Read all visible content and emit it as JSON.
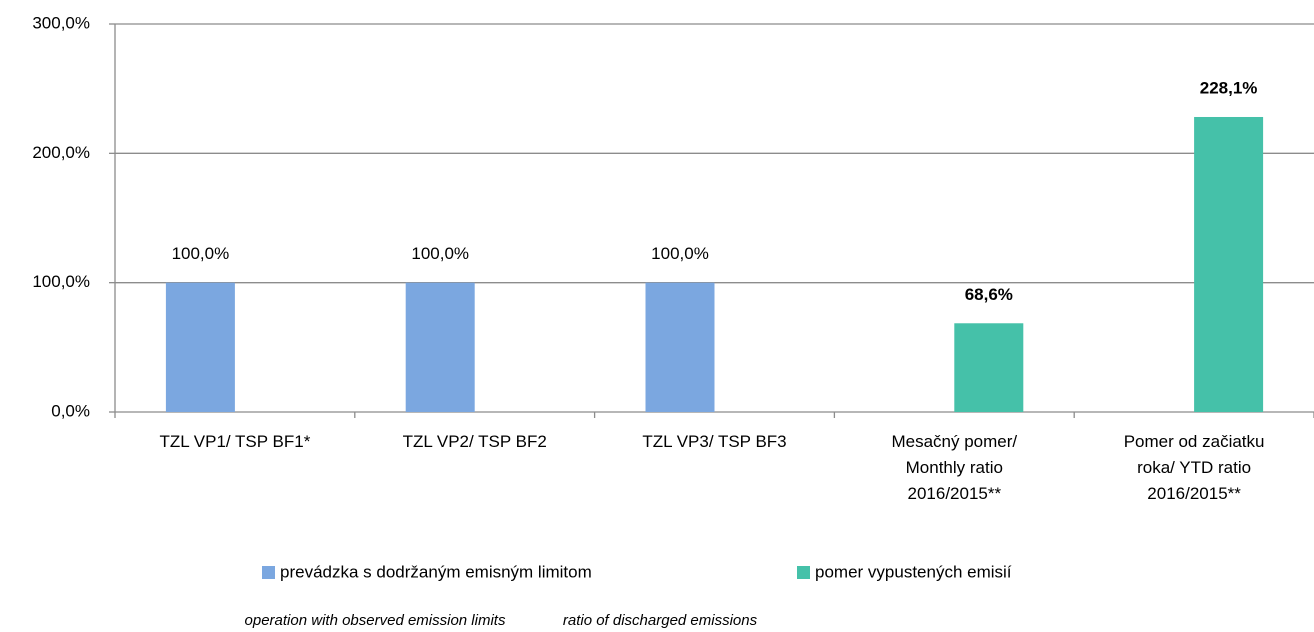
{
  "chart_data": {
    "type": "bar",
    "categories": [
      "TZL VP1/ TSP BF1*",
      "TZL VP2/ TSP BF2",
      "TZL VP3/ TSP BF3",
      "Mesačný pomer/\nMonthly ratio\n2016/2015**",
      "Pomer  od začiatku\nroka/ YTD ratio\n2016/2015**"
    ],
    "series": [
      {
        "name": "prevádzka s dodržaným emisným limitom",
        "legend_caption": "operation with observed emission limits",
        "color": "#7ba7e0",
        "values": [
          100,
          100,
          100,
          null,
          null
        ],
        "value_labels": [
          "100,0%",
          "100,0%",
          "100,0%",
          null,
          null
        ]
      },
      {
        "name": "pomer vypustených emisií",
        "legend_caption": "ratio of discharged emissions",
        "color": "#45c1a9",
        "values": [
          null,
          null,
          null,
          68.6,
          228.1
        ],
        "value_labels": [
          null,
          null,
          null,
          "68,6%",
          "228,1%"
        ]
      }
    ],
    "ylim": [
      0,
      300
    ],
    "yticks": [
      {
        "value": 0,
        "label": "0,0%"
      },
      {
        "value": 100,
        "label": "100,0%"
      },
      {
        "value": 200,
        "label": "200,0%"
      },
      {
        "value": 300,
        "label": "300,0%"
      }
    ],
    "grid": true,
    "legend": "bottom"
  }
}
